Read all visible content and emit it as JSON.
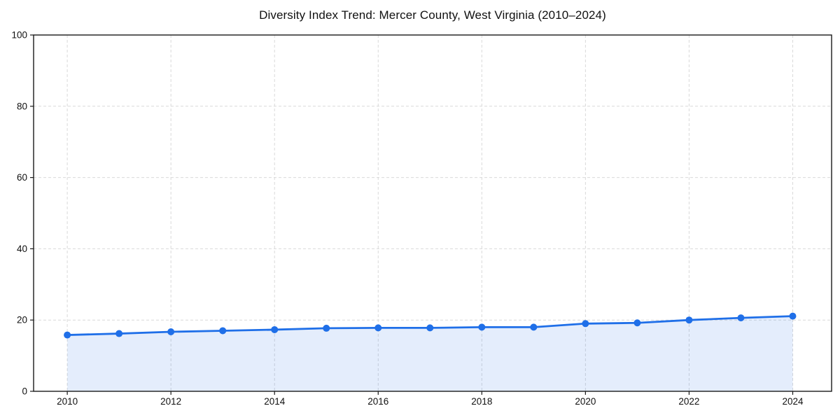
{
  "page": {
    "background": "#ffffff"
  },
  "chart_data": {
    "type": "line",
    "title": "Diversity Index Trend: Mercer County, West Virginia (2010–2024)",
    "xlabel": "",
    "ylabel": "",
    "x": [
      2010,
      2011,
      2012,
      2013,
      2014,
      2015,
      2016,
      2017,
      2018,
      2019,
      2020,
      2021,
      2022,
      2023,
      2024
    ],
    "series": [
      {
        "name": "Diversity Index",
        "values": [
          15.8,
          16.2,
          16.7,
          17.0,
          17.3,
          17.7,
          17.8,
          17.8,
          18.0,
          18.0,
          19.0,
          19.2,
          20.0,
          20.6,
          21.1
        ]
      }
    ],
    "xlim": [
      2009.35,
      2024.75
    ],
    "ylim": [
      0,
      100
    ],
    "x_ticks": [
      "2010",
      "2012",
      "2014",
      "2016",
      "2018",
      "2020",
      "2022",
      "2024"
    ],
    "y_ticks": [
      "0",
      "20",
      "40",
      "60",
      "80",
      "100"
    ],
    "grid": {
      "show": true,
      "style": "dashed",
      "color": "#d9d9d9"
    },
    "legend": {
      "show": false
    },
    "styles": {
      "line_color": "#1f6fe8",
      "marker_color": "#1f6fe8",
      "marker_shape": "circle",
      "marker_radius": 5,
      "line_width": 2.8,
      "area_fill_color": "#1f6fe8",
      "area_fill_opacity": 0.12,
      "spine_color": "#1a1a1a",
      "tick_label_color": "#111111",
      "title_color": "#111111",
      "plot_background": "#ffffff"
    }
  }
}
